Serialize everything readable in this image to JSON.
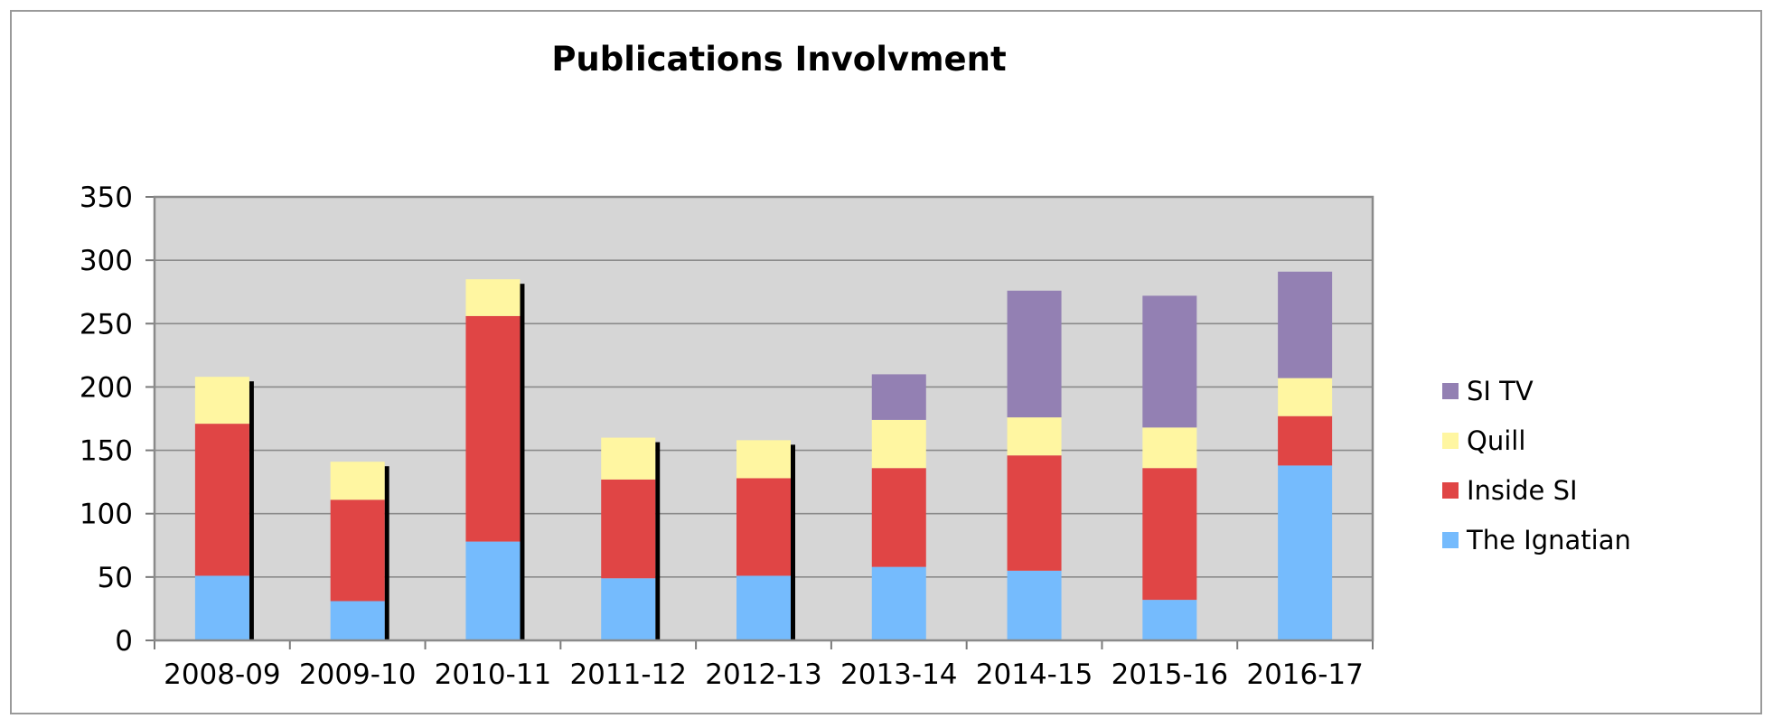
{
  "chart_data": {
    "type": "bar",
    "stacked": true,
    "title": "Publications Involvment",
    "xlabel": "",
    "ylabel": "",
    "categories": [
      "2008-09",
      "2009-10",
      "2010-11",
      "2011-12",
      "2012-13",
      "2013-14",
      "2014-15",
      "2015-16",
      "2016-17"
    ],
    "series": [
      {
        "name": "The Ignatian",
        "color": "#75BBFD",
        "values": [
          51,
          31,
          78,
          49,
          51,
          58,
          55,
          32,
          138
        ]
      },
      {
        "name": "Inside SI",
        "color": "#E04545",
        "values": [
          120,
          80,
          178,
          78,
          77,
          78,
          91,
          104,
          39
        ]
      },
      {
        "name": "Quill",
        "color": "#FFF6A1",
        "values": [
          37,
          30,
          29,
          33,
          30,
          38,
          30,
          32,
          30
        ]
      },
      {
        "name": "SI TV",
        "color": "#9380B3",
        "values": [
          0,
          0,
          0,
          0,
          0,
          36,
          100,
          104,
          84
        ]
      }
    ],
    "ylim": [
      0,
      350
    ],
    "yticks": [
      0,
      50,
      100,
      150,
      200,
      250,
      300,
      350
    ],
    "grid": true,
    "legend": "right",
    "plot_background": "#D6D6D6"
  }
}
